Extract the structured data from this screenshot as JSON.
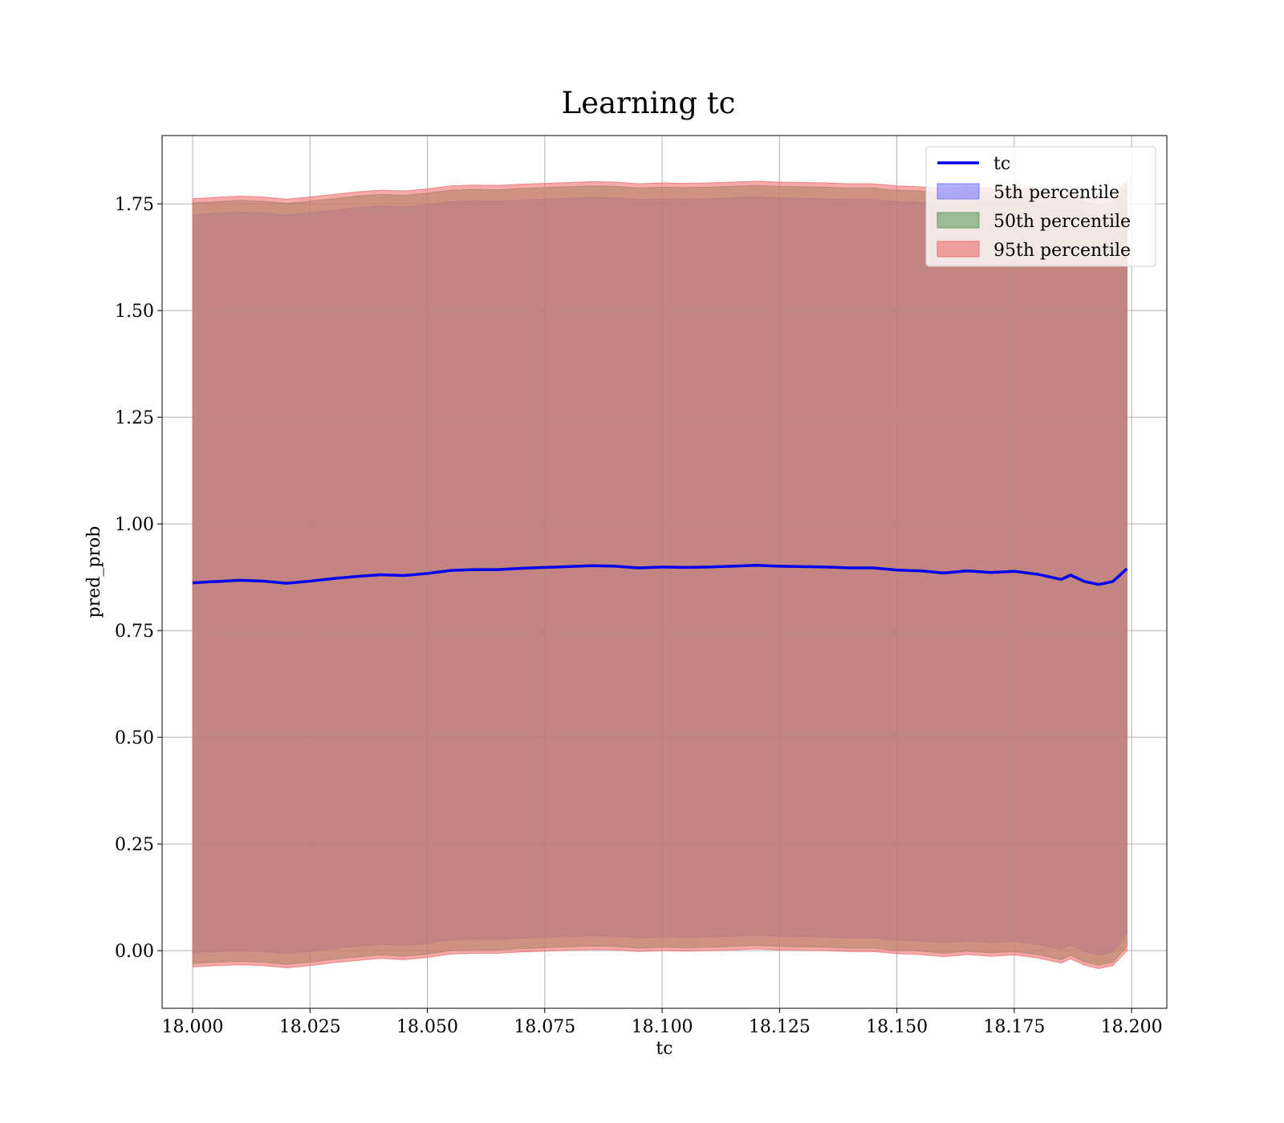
{
  "chart_data": {
    "type": "area",
    "title": "Learning tc",
    "xlabel": "tc",
    "ylabel": "pred_prob",
    "xlim": [
      17.9935,
      18.2075
    ],
    "ylim": [
      -0.135,
      1.91
    ],
    "grid": true,
    "legend_position": "top-right",
    "x_ticks": [
      "18.000",
      "18.025",
      "18.050",
      "18.075",
      "18.100",
      "18.125",
      "18.150",
      "18.175",
      "18.200"
    ],
    "y_ticks": [
      "0.00",
      "0.25",
      "0.50",
      "0.75",
      "1.00",
      "1.25",
      "1.50",
      "1.75"
    ],
    "x": [
      18.0,
      18.005,
      18.01,
      18.015,
      18.02,
      18.025,
      18.03,
      18.035,
      18.04,
      18.045,
      18.05,
      18.055,
      18.06,
      18.065,
      18.07,
      18.075,
      18.08,
      18.085,
      18.09,
      18.095,
      18.1,
      18.105,
      18.11,
      18.115,
      18.12,
      18.125,
      18.13,
      18.135,
      18.14,
      18.145,
      18.15,
      18.155,
      18.16,
      18.165,
      18.17,
      18.175,
      18.18,
      18.185,
      18.187,
      18.19,
      18.193,
      18.196,
      18.199
    ],
    "series": [
      {
        "name": "tc",
        "kind": "line",
        "color": "#0000ee",
        "values": [
          0.862,
          0.865,
          0.868,
          0.866,
          0.861,
          0.866,
          0.872,
          0.877,
          0.881,
          0.879,
          0.884,
          0.891,
          0.893,
          0.893,
          0.896,
          0.898,
          0.9,
          0.902,
          0.901,
          0.897,
          0.899,
          0.898,
          0.899,
          0.901,
          0.903,
          0.901,
          0.9,
          0.899,
          0.897,
          0.897,
          0.892,
          0.89,
          0.885,
          0.89,
          0.886,
          0.889,
          0.882,
          0.87,
          0.88,
          0.865,
          0.858,
          0.865,
          0.895
        ]
      },
      {
        "name": "5th percentile",
        "kind": "band",
        "color": "#7b7bff",
        "lower": [
          -0.004,
          -0.002,
          0.0,
          -0.002,
          -0.007,
          -0.002,
          0.005,
          0.011,
          0.015,
          0.012,
          0.017,
          0.025,
          0.027,
          0.026,
          0.029,
          0.031,
          0.033,
          0.035,
          0.034,
          0.03,
          0.032,
          0.031,
          0.032,
          0.034,
          0.036,
          0.034,
          0.033,
          0.032,
          0.03,
          0.03,
          0.025,
          0.023,
          0.018,
          0.023,
          0.019,
          0.022,
          0.015,
          0.003,
          0.013,
          -0.002,
          -0.01,
          -0.003,
          0.04
        ],
        "upper": [
          1.725,
          1.728,
          1.731,
          1.729,
          1.724,
          1.729,
          1.735,
          1.741,
          1.745,
          1.743,
          1.748,
          1.755,
          1.757,
          1.756,
          1.759,
          1.761,
          1.763,
          1.765,
          1.764,
          1.76,
          1.762,
          1.761,
          1.762,
          1.764,
          1.766,
          1.764,
          1.763,
          1.762,
          1.76,
          1.76,
          1.755,
          1.753,
          1.748,
          1.753,
          1.749,
          1.752,
          1.745,
          1.733,
          1.743,
          1.728,
          1.72,
          1.727,
          1.77
        ]
      },
      {
        "name": "50th percentile",
        "kind": "band",
        "color": "#5f9f5f",
        "lower": [
          -0.03,
          -0.027,
          -0.025,
          -0.027,
          -0.032,
          -0.027,
          -0.02,
          -0.015,
          -0.01,
          -0.013,
          -0.008,
          0.0,
          0.002,
          0.002,
          0.005,
          0.007,
          0.009,
          0.011,
          0.01,
          0.006,
          0.008,
          0.007,
          0.008,
          0.01,
          0.012,
          0.01,
          0.009,
          0.008,
          0.006,
          0.006,
          0.001,
          -0.001,
          -0.006,
          -0.001,
          -0.005,
          -0.002,
          -0.009,
          -0.021,
          -0.011,
          -0.026,
          -0.034,
          -0.027,
          0.01
        ],
        "upper": [
          1.752,
          1.755,
          1.758,
          1.756,
          1.751,
          1.756,
          1.762,
          1.768,
          1.772,
          1.77,
          1.775,
          1.782,
          1.784,
          1.783,
          1.786,
          1.788,
          1.79,
          1.792,
          1.791,
          1.787,
          1.789,
          1.788,
          1.789,
          1.791,
          1.793,
          1.791,
          1.79,
          1.789,
          1.787,
          1.787,
          1.782,
          1.78,
          1.775,
          1.78,
          1.776,
          1.779,
          1.772,
          1.76,
          1.77,
          1.755,
          1.747,
          1.754,
          1.79
        ]
      },
      {
        "name": "95th percentile",
        "kind": "band",
        "color": "#ef6f6f",
        "lower": [
          -0.038,
          -0.035,
          -0.033,
          -0.035,
          -0.04,
          -0.035,
          -0.028,
          -0.023,
          -0.018,
          -0.021,
          -0.016,
          -0.008,
          -0.006,
          -0.006,
          -0.003,
          -0.001,
          0.001,
          0.003,
          0.002,
          -0.002,
          0.0,
          -0.001,
          0.0,
          0.002,
          0.004,
          0.002,
          0.001,
          0.0,
          -0.002,
          -0.002,
          -0.007,
          -0.009,
          -0.014,
          -0.009,
          -0.013,
          -0.01,
          -0.017,
          -0.029,
          -0.019,
          -0.034,
          -0.042,
          -0.035,
          0.0
        ],
        "upper": [
          1.762,
          1.765,
          1.768,
          1.766,
          1.761,
          1.766,
          1.772,
          1.778,
          1.782,
          1.78,
          1.785,
          1.792,
          1.794,
          1.793,
          1.796,
          1.798,
          1.8,
          1.802,
          1.801,
          1.797,
          1.799,
          1.798,
          1.799,
          1.801,
          1.803,
          1.801,
          1.8,
          1.799,
          1.797,
          1.797,
          1.792,
          1.79,
          1.785,
          1.79,
          1.786,
          1.789,
          1.782,
          1.77,
          1.78,
          1.765,
          1.757,
          1.764,
          1.805
        ]
      }
    ]
  }
}
